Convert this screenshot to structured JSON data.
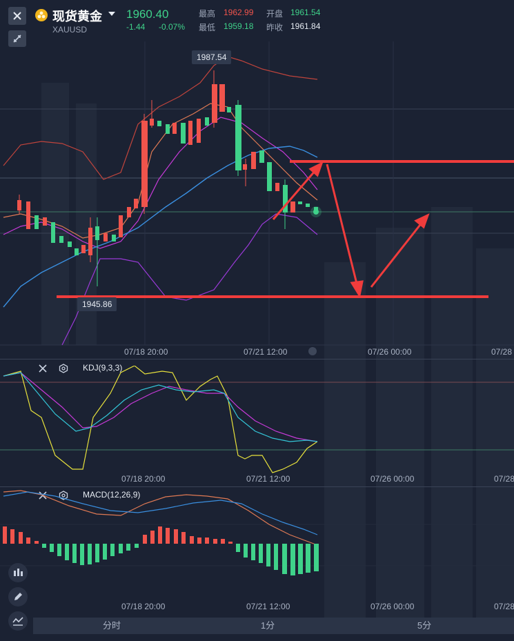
{
  "header": {
    "close_icon": "close-icon",
    "collapse_icon": "collapse-arrows-icon",
    "coin_icon": "gold-coin-icon",
    "title": "现货黄金",
    "dropdown_icon": "caret-down-icon",
    "symbol": "XAUUSD",
    "price": "1960.40",
    "change": "-1.44",
    "change_pct": "-0.07%",
    "high_label": "最高",
    "high_value": "1962.99",
    "open_label": "开盘",
    "open_value": "1961.54",
    "low_label": "最低",
    "low_value": "1959.18",
    "prev_close_label": "昨收",
    "prev_close_value": "1961.84"
  },
  "main_chart": {
    "type": "candlestick",
    "callout_high": "1987.54",
    "callout_low": "1945.86",
    "x_ticks": [
      "07/18 20:00",
      "07/21 12:00",
      "07/26 00:00",
      "07/28"
    ],
    "colors": {
      "up": "#f0544c",
      "down": "#3fd28a",
      "annotation": "#f03c3c"
    }
  },
  "kdj": {
    "title": "KDJ(9,3,3)",
    "x_ticks": [
      "07/18 20:00",
      "07/21 12:00",
      "07/26 00:00",
      "07/28"
    ]
  },
  "macd": {
    "title": "MACD(12,26,9)",
    "x_ticks": [
      "07/18 20:00",
      "07/21 12:00",
      "07/26 00:00",
      "07/28"
    ]
  },
  "tabs": [
    "分时",
    "1分",
    "5分"
  ],
  "side_tools": [
    "candles-icon",
    "pencil-icon",
    "indicator-icon"
  ]
}
